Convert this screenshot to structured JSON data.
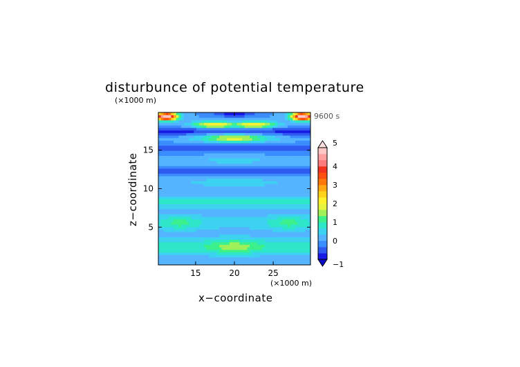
{
  "chart_data": {
    "type": "heatmap",
    "title": "disturbunce of potential temperature",
    "time_label": "9600 s",
    "xlabel": "x−coordinate",
    "ylabel": "z−coordinate",
    "x_unit": "(×1000 m)",
    "y_unit": "(×1000 m)",
    "xlim": [
      10.2,
      29.8
    ],
    "ylim": [
      0.1,
      19.9
    ],
    "xticks": [
      15,
      20,
      25
    ],
    "yticks": [
      5,
      10,
      15
    ],
    "colorbar": {
      "ticks": [
        -1,
        0,
        1,
        2,
        3,
        4,
        5
      ],
      "range": [
        -1,
        5
      ],
      "colors": [
        "#1a1ae6",
        "#2e5af0",
        "#3a8cff",
        "#55b4ff",
        "#3cd2f0",
        "#2ee6c8",
        "#3cf08c",
        "#a0f05a",
        "#e6f53c",
        "#fff02d",
        "#ffd21e",
        "#ffaa14",
        "#ff780a",
        "#ff5014",
        "#f0321e",
        "#ff7a7a",
        "#ffa0a0",
        "#ffc8c8"
      ],
      "extend": "both"
    },
    "field_description": "symmetric about x=20; negative band near z≈18.5, positive bands near z≈17.5 and z≈19.5 (max ≈5 near x≈11 and x≈29), positive bands at low levels"
  }
}
